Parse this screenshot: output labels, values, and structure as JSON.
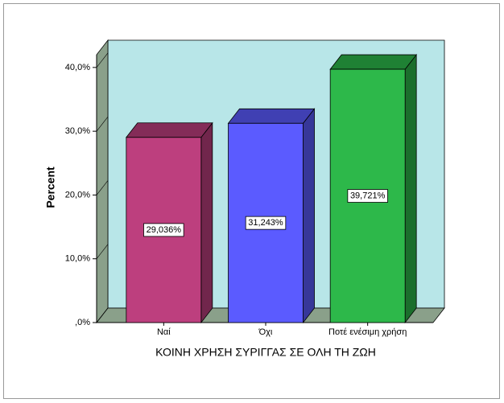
{
  "chart_data": {
    "type": "bar3d",
    "x_label": "ΚΟΙΝΗ ΧΡΗΣΗ ΣΥΡΙΓΓΑΣ ΣΕ ΟΛΗ ΤΗ ΖΩΗ",
    "y_label": "Percent",
    "categories": [
      "Ναί",
      "Όχι",
      "Ποτέ ενέσιμη χρήση"
    ],
    "values": [
      29.036,
      31.243,
      39.721
    ],
    "value_labels": [
      "29,036%",
      "31,243%",
      "39,721%"
    ],
    "colors": [
      "#bd3f7e",
      "#5b5bff",
      "#2db84a"
    ],
    "ylim": [
      0,
      42
    ],
    "yticks": [
      {
        "value": 0,
        "label": ",0%"
      },
      {
        "value": 10,
        "label": "10,0%"
      },
      {
        "value": 20,
        "label": "20,0%"
      },
      {
        "value": 30,
        "label": "30,0%"
      },
      {
        "value": 40,
        "label": "40,0%"
      }
    ]
  }
}
